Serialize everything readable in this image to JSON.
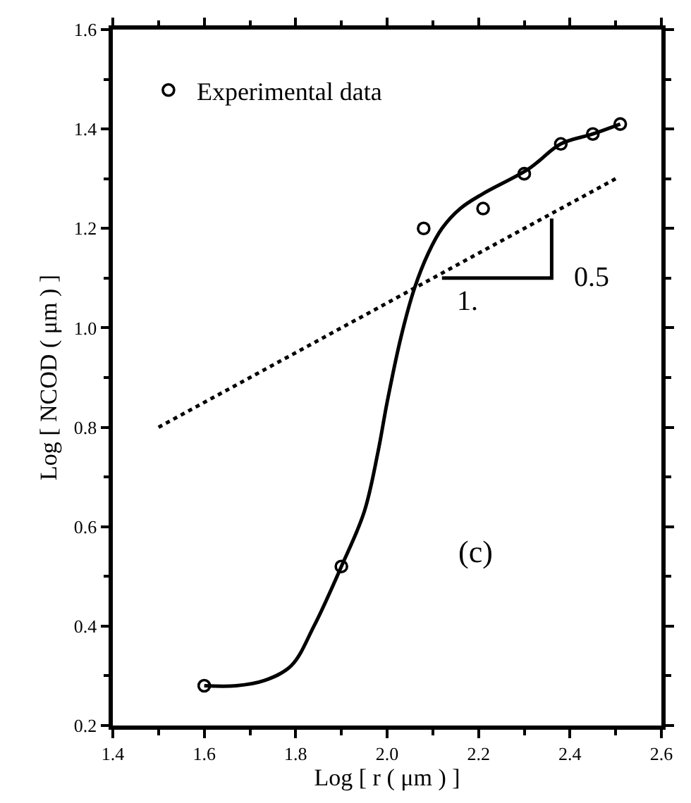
{
  "chart_data": {
    "type": "line",
    "xlabel": "Log [ r ( μm ) ]",
    "ylabel": "Log [ NCOD ( μm ) ]",
    "xlim": [
      1.4,
      2.6
    ],
    "ylim": [
      0.2,
      1.6
    ],
    "xticks": [
      1.4,
      1.6,
      1.8,
      {
        "value": 2.0,
        "label": "2.0"
      },
      2.2,
      2.4,
      2.6
    ],
    "yticks": [
      0.2,
      0.4,
      0.6,
      0.8,
      {
        "value": 1.0,
        "label": "1.0"
      },
      1.2,
      1.4,
      1.6
    ],
    "legend": "top left",
    "series": [
      {
        "name": "Experimental data",
        "type": "scatter",
        "marker": "circle",
        "color": "#000000",
        "x": [
          1.6,
          1.9,
          2.08,
          2.21,
          2.3,
          2.38,
          2.45,
          2.51
        ],
        "values": [
          0.28,
          0.52,
          1.2,
          1.24,
          1.31,
          1.37,
          1.39,
          1.41
        ]
      },
      {
        "line_style": "solid",
        "color": "#000000",
        "x": [
          1.6,
          1.67,
          1.73,
          1.79,
          1.84,
          1.9,
          1.95,
          1.98,
          2.0,
          2.03,
          2.06,
          2.09,
          2.12,
          2.16,
          2.21,
          2.31,
          2.38,
          2.45,
          2.51
        ],
        "values": [
          0.28,
          0.28,
          0.29,
          0.32,
          0.4,
          0.52,
          0.63,
          0.75,
          0.85,
          0.98,
          1.08,
          1.15,
          1.2,
          1.24,
          1.27,
          1.32,
          1.37,
          1.39,
          1.41
        ]
      },
      {
        "line_style": "dotted",
        "color": "#000000",
        "x": [
          1.5,
          2.5
        ],
        "values": [
          0.8,
          1.3
        ]
      },
      {
        "line_style": "solid",
        "color": "#000000",
        "x": [
          2.12,
          2.36,
          2.36
        ],
        "values": [
          1.1,
          1.1,
          1.22
        ]
      }
    ],
    "annotations": [
      "1.",
      "0.5",
      "(c)"
    ]
  }
}
